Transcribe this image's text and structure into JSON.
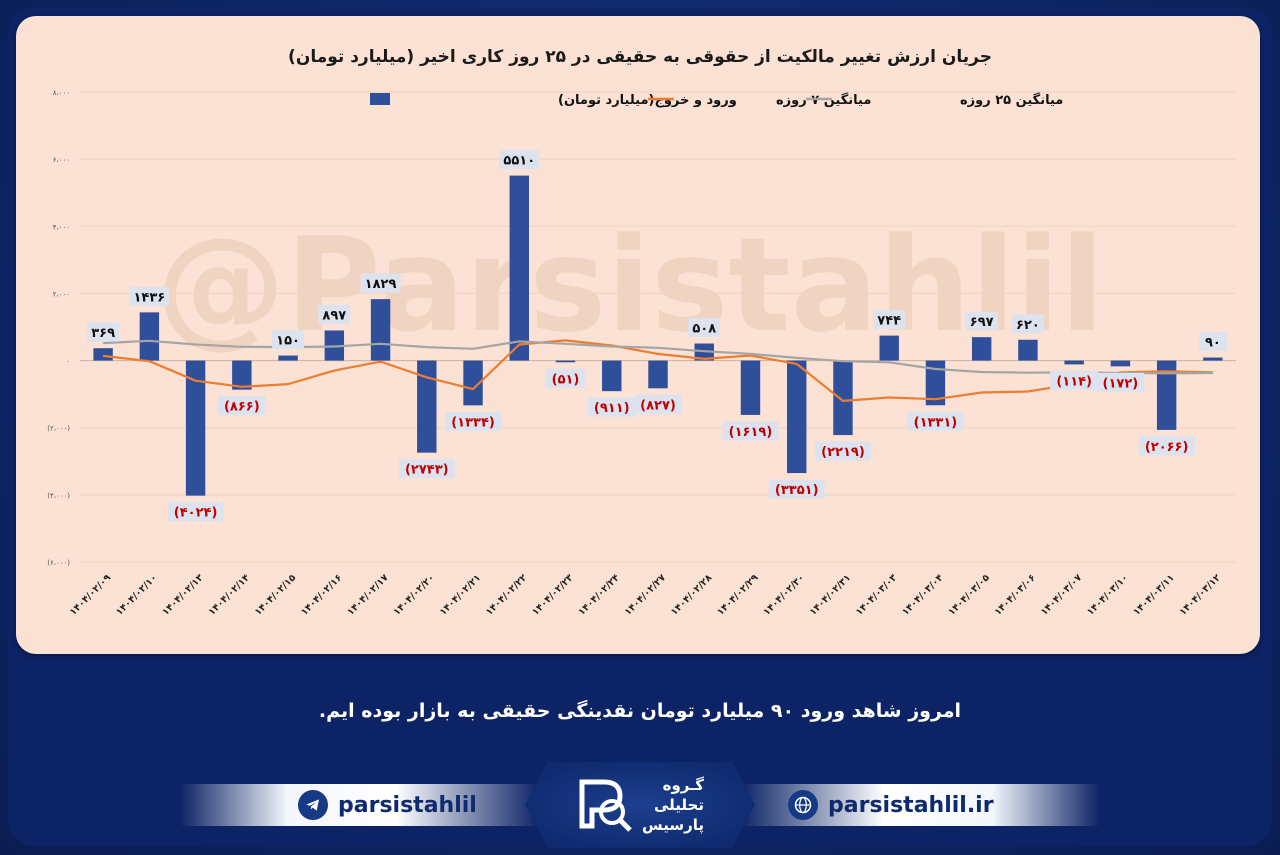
{
  "caption": "امروز شاهد ورود ۹۰ میلیارد تومان نقدینگی حقیقی به بازار بوده ایم.",
  "footer": {
    "telegram": "parsistahlil",
    "website": "parsistahlil.ir",
    "logo_line1": "گـروه",
    "logo_line2": "تحلیلی",
    "logo_line3": "پارسیس"
  },
  "watermark": "@Parsistahlil",
  "colors": {
    "bar": "#2f4f9b",
    "ma7": "#ed7d31",
    "ma25": "#a5a5a5",
    "negative_label": "#c00000",
    "card": "#fbe2d4"
  },
  "chart_data": {
    "type": "bar",
    "title": "جریان ارزش تغییر مالکیت از حقوقی به حقیقی در ۲۵ روز کاری اخیر (میلیارد تومان)",
    "ylim": [
      -6000,
      8000
    ],
    "yticks": [
      8000,
      6000,
      4000,
      2000,
      0,
      -2000,
      -4000,
      -6000
    ],
    "ytick_labels": [
      "۸،۰۰۰",
      "۶،۰۰۰",
      "۴،۰۰۰",
      "۲،۰۰۰",
      "۰",
      "(۲،۰۰۰)",
      "(۴،۰۰۰)",
      "(۶،۰۰۰)"
    ],
    "categories": [
      "۱۴۰۴/۰۲/۰۹",
      "۱۴۰۴/۰۲/۱۰",
      "۱۴۰۴/۰۲/۱۳",
      "۱۴۰۴/۰۲/۱۴",
      "۱۴۰۴/۰۲/۱۵",
      "۱۴۰۴/۰۲/۱۶",
      "۱۴۰۴/۰۲/۱۷",
      "۱۴۰۴/۰۲/۲۰",
      "۱۴۰۴/۰۲/۲۱",
      "۱۴۰۴/۰۲/۲۲",
      "۱۴۰۴/۰۲/۲۳",
      "۱۴۰۴/۰۲/۲۴",
      "۱۴۰۴/۰۲/۲۷",
      "۱۴۰۴/۰۲/۲۸",
      "۱۴۰۴/۰۲/۲۹",
      "۱۴۰۴/۰۲/۳۰",
      "۱۴۰۴/۰۲/۳۱",
      "۱۴۰۴/۰۳/۰۳",
      "۱۴۰۴/۰۳/۰۴",
      "۱۴۰۴/۰۳/۰۵",
      "۱۴۰۴/۰۳/۰۶",
      "۱۴۰۴/۰۳/۰۷",
      "۱۴۰۴/۰۳/۱۰",
      "۱۴۰۴/۰۳/۱۱",
      "۱۴۰۴/۰۳/۱۲"
    ],
    "series": [
      {
        "name": "ورود و خروج(میلیارد تومان)",
        "type": "bar",
        "values": [
          369,
          1436,
          -4024,
          -866,
          150,
          897,
          1829,
          -2743,
          -1334,
          5510,
          -51,
          -911,
          -827,
          508,
          -1619,
          -3351,
          -2219,
          744,
          -1331,
          697,
          620,
          -114,
          -172,
          -2066,
          90
        ],
        "labels": [
          "۳۶۹",
          "۱۴۳۶",
          "(۴۰۲۴)",
          "(۸۶۶)",
          "۱۵۰",
          "۸۹۷",
          "۱۸۲۹",
          "(۲۷۴۳)",
          "(۱۳۳۴)",
          "۵۵۱۰",
          "(۵۱)",
          "(۹۱۱)",
          "(۸۲۷)",
          "۵۰۸",
          "(۱۶۱۹)",
          "(۳۳۵۱)",
          "(۲۲۱۹)",
          "۷۴۴",
          "(۱۳۳۱)",
          "۶۹۷",
          "۶۲۰",
          "(۱۱۴)",
          "(۱۷۲)",
          "(۲۰۶۶)",
          "۹۰"
        ]
      },
      {
        "name": "میانگین ۷ روزه",
        "type": "line",
        "values": [
          140,
          -20,
          -600,
          -780,
          -700,
          -300,
          -30,
          -500,
          -850,
          480,
          600,
          450,
          200,
          50,
          150,
          -100,
          -1200,
          -1100,
          -1150,
          -950,
          -920,
          -700,
          -350,
          -320,
          -350
        ]
      },
      {
        "name": "میانگین ۲۵ روزه",
        "type": "line",
        "values": [
          520,
          590,
          480,
          410,
          400,
          420,
          500,
          400,
          350,
          570,
          500,
          420,
          380,
          280,
          200,
          80,
          -20,
          -50,
          -250,
          -340,
          -360,
          -350,
          -370,
          -380,
          -370
        ]
      }
    ],
    "legend_position": "top",
    "grid": true
  }
}
